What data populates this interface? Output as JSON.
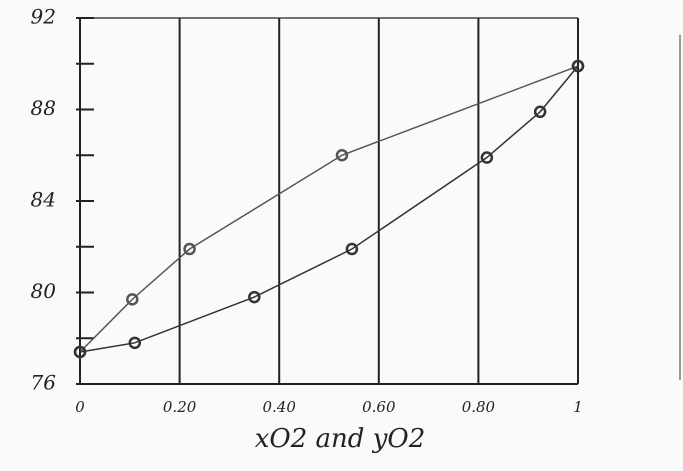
{
  "chart_data": {
    "type": "line",
    "x_label": "xO2 and yO2",
    "series": [
      {
        "x": [
          0,
          0.105,
          0.22,
          0.526,
          1
        ],
        "values": [
          77.4,
          79.7,
          81.9,
          86.0,
          89.9
        ],
        "color": "#555555"
      },
      {
        "x": [
          0,
          0.11,
          0.35,
          0.546,
          0.817,
          0.924,
          1
        ],
        "values": [
          77.4,
          77.8,
          79.8,
          81.9,
          85.9,
          87.9,
          89.9
        ],
        "color": "#333333"
      }
    ],
    "xlim": [
      0,
      1
    ],
    "xticks": [
      0,
      {
        "value": 0.2,
        "label": "0.20"
      },
      {
        "value": 0.4,
        "label": "0.40"
      },
      {
        "value": 0.6,
        "label": "0.60"
      },
      {
        "value": 0.8,
        "label": "0.80"
      },
      1
    ],
    "ylim": [
      76,
      92
    ],
    "yticks": [
      76,
      80,
      84,
      88,
      92
    ],
    "yminorticks": [
      78,
      82,
      86,
      90
    ],
    "grid": true
  }
}
